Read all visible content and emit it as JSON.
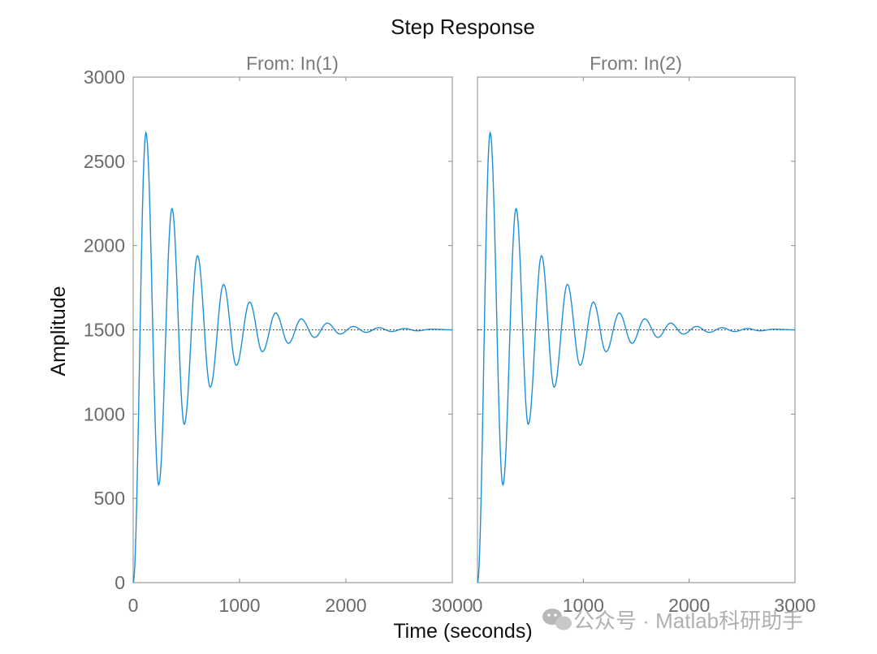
{
  "figure_title": "Step Response",
  "chart_data": {
    "type": "line",
    "xlabel": "Time (seconds)",
    "ylabel": "Amplitude",
    "xlim": [
      0,
      3000
    ],
    "ylim": [
      0,
      3000
    ],
    "x_ticks": [
      "0",
      "1000",
      "2000",
      "3000"
    ],
    "y_ticks": [
      "0",
      "500",
      "1000",
      "1500",
      "2000",
      "2500",
      "3000"
    ],
    "steady_state": 1500,
    "series_color": "#1f8fd6",
    "panels": [
      {
        "subtitle": "From: In(1)",
        "x": [
          0,
          120,
          240,
          365,
          480,
          605,
          725,
          850,
          970,
          1095,
          1215,
          1340,
          1460,
          1580,
          1705,
          1825,
          1945,
          2070,
          2190,
          2310,
          2430,
          2550,
          2670,
          2800,
          3000
        ],
        "y": [
          0,
          2670,
          580,
          2220,
          940,
          1940,
          1160,
          1770,
          1290,
          1665,
          1370,
          1600,
          1420,
          1565,
          1455,
          1540,
          1475,
          1520,
          1485,
          1513,
          1490,
          1508,
          1494,
          1504,
          1500
        ]
      },
      {
        "subtitle": "From: In(2)",
        "x": [
          0,
          120,
          240,
          365,
          480,
          605,
          725,
          850,
          970,
          1095,
          1215,
          1340,
          1460,
          1580,
          1705,
          1825,
          1945,
          2070,
          2190,
          2310,
          2430,
          2550,
          2670,
          2800,
          3000
        ],
        "y": [
          0,
          2670,
          580,
          2220,
          940,
          1940,
          1160,
          1770,
          1290,
          1665,
          1370,
          1600,
          1420,
          1565,
          1455,
          1540,
          1475,
          1520,
          1485,
          1513,
          1490,
          1508,
          1494,
          1504,
          1500
        ]
      }
    ]
  },
  "watermark": {
    "text": "公众号 · Matlab科研助手",
    "icon": "wechat-icon"
  }
}
